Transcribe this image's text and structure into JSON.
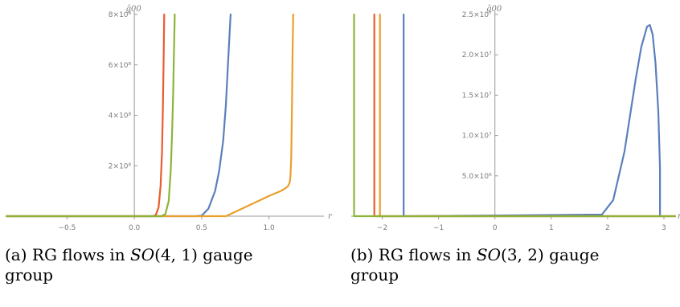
{
  "chart_data": [
    {
      "type": "line",
      "ylabel": "ĝ00",
      "xlabel": "r",
      "xlim": [
        -0.95,
        1.42
      ],
      "ylim": [
        0,
        800000000
      ],
      "x_ticks": [
        -0.5,
        0.0,
        0.5,
        1.0
      ],
      "x_tick_labels": [
        "−0.5",
        "0.0",
        "0.5",
        "1.0"
      ],
      "y_ticks": [
        200000000,
        400000000,
        600000000,
        800000000
      ],
      "y_tick_labels": [
        "2×10⁸",
        "4×10⁸",
        "6×10⁸",
        "8×10⁸"
      ],
      "grid": false,
      "series": [
        {
          "color": "#5b7fbd",
          "x": [
            -0.95,
            0.45,
            0.5,
            0.55,
            0.6,
            0.63,
            0.66,
            0.68,
            0.7,
            0.715
          ],
          "y": [
            0,
            0,
            2000000,
            30000000,
            100000000,
            180000000,
            300000000,
            440000000,
            650000000,
            800000000
          ]
        },
        {
          "color": "#e9a02c",
          "x": [
            -0.95,
            0.68,
            0.72,
            0.8,
            0.9,
            1.0,
            1.1,
            1.14,
            1.155,
            1.16,
            1.165,
            1.17,
            1.175,
            1.18
          ],
          "y": [
            0,
            0,
            10000000,
            30000000,
            55000000,
            80000000,
            103000000,
            118000000,
            135000000,
            160000000,
            230000000,
            400000000,
            650000000,
            800000000
          ]
        },
        {
          "color": "#e95c2f",
          "x": [
            -0.95,
            0.14,
            0.16,
            0.18,
            0.195,
            0.205,
            0.212,
            0.218,
            0.222
          ],
          "y": [
            0,
            0,
            5000000,
            35000000,
            120000000,
            250000000,
            420000000,
            650000000,
            800000000
          ]
        },
        {
          "color": "#8db43a",
          "x": [
            -0.95,
            0.2,
            0.23,
            0.255,
            0.27,
            0.28,
            0.288,
            0.295,
            0.3
          ],
          "y": [
            0,
            0,
            8000000,
            60000000,
            180000000,
            320000000,
            480000000,
            680000000,
            800000000
          ]
        }
      ]
    },
    {
      "type": "line",
      "ylabel": "ĝ00",
      "xlabel": "r",
      "xlim": [
        -2.55,
        3.2
      ],
      "ylim": [
        0,
        25000000
      ],
      "x_ticks": [
        -2,
        -1,
        0,
        1,
        2,
        3
      ],
      "x_tick_labels": [
        "−2",
        "−1",
        "0",
        "1",
        "2",
        "3"
      ],
      "y_ticks": [
        5000000,
        10000000,
        15000000,
        20000000,
        25000000
      ],
      "y_tick_labels": [
        "5.0×10⁶",
        "1.0×10⁷",
        "1.5×10⁷",
        "2.0×10⁷",
        "2.5×10⁷"
      ],
      "grid": false,
      "series": [
        {
          "color": "#5b7fbd",
          "x": [
            -1.62,
            -1.62,
            -1.62,
            1.9,
            2.1,
            2.3,
            2.5,
            2.6,
            2.7,
            2.75,
            2.8,
            2.85,
            2.9,
            2.93,
            2.93
          ],
          "y": [
            25000000,
            0,
            0,
            200000,
            2000000,
            8000000,
            17000000,
            21000000,
            23500000,
            23700000,
            22500000,
            19000000,
            13000000,
            6000000,
            0
          ]
        },
        {
          "color": "#e9a02c",
          "x": [
            -2.04,
            -2.04,
            3.2
          ],
          "y": [
            25000000,
            0,
            0
          ]
        },
        {
          "color": "#e95c2f",
          "x": [
            -2.14,
            -2.14,
            3.2
          ],
          "y": [
            25000000,
            0,
            0
          ]
        },
        {
          "color": "#8db43a",
          "x": [
            -2.5,
            -2.5,
            3.2
          ],
          "y": [
            25000000,
            0,
            0
          ]
        }
      ]
    }
  ],
  "captions": {
    "a_prefix": "(a) RG flows in ",
    "a_math": "SO",
    "a_args": "(4, 1)",
    "a_suffix": " gauge",
    "a_line2": "group",
    "b_prefix": "(b) RG flows in ",
    "b_math": "SO",
    "b_args": "(3, 2)",
    "b_suffix": " gauge",
    "b_line2": "group"
  }
}
